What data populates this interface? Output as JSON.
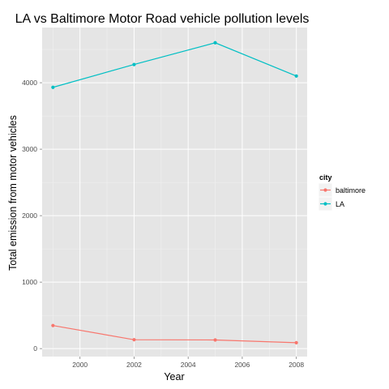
{
  "chart_data": {
    "type": "line",
    "title": "LA vs Baltimore Motor Road vehicle pollution levels",
    "xlabel": "Year",
    "ylabel": "Total emission from motor vehicles",
    "x": [
      1999,
      2002,
      2005,
      2008
    ],
    "xlim": [
      1998.6,
      2008.4
    ],
    "ylim": [
      -120,
      4830
    ],
    "xticks": [
      2000,
      2002,
      2004,
      2006,
      2008
    ],
    "yticks": [
      0,
      1000,
      2000,
      3000,
      4000
    ],
    "grid": true,
    "legend": {
      "title": "city",
      "position": "right"
    },
    "series": [
      {
        "name": "baltimore",
        "color": "#F8766D",
        "values": [
          347,
          134,
          130,
          89
        ]
      },
      {
        "name": "LA",
        "color": "#00BFC4",
        "values": [
          3931,
          4274,
          4601,
          4101
        ]
      }
    ]
  }
}
